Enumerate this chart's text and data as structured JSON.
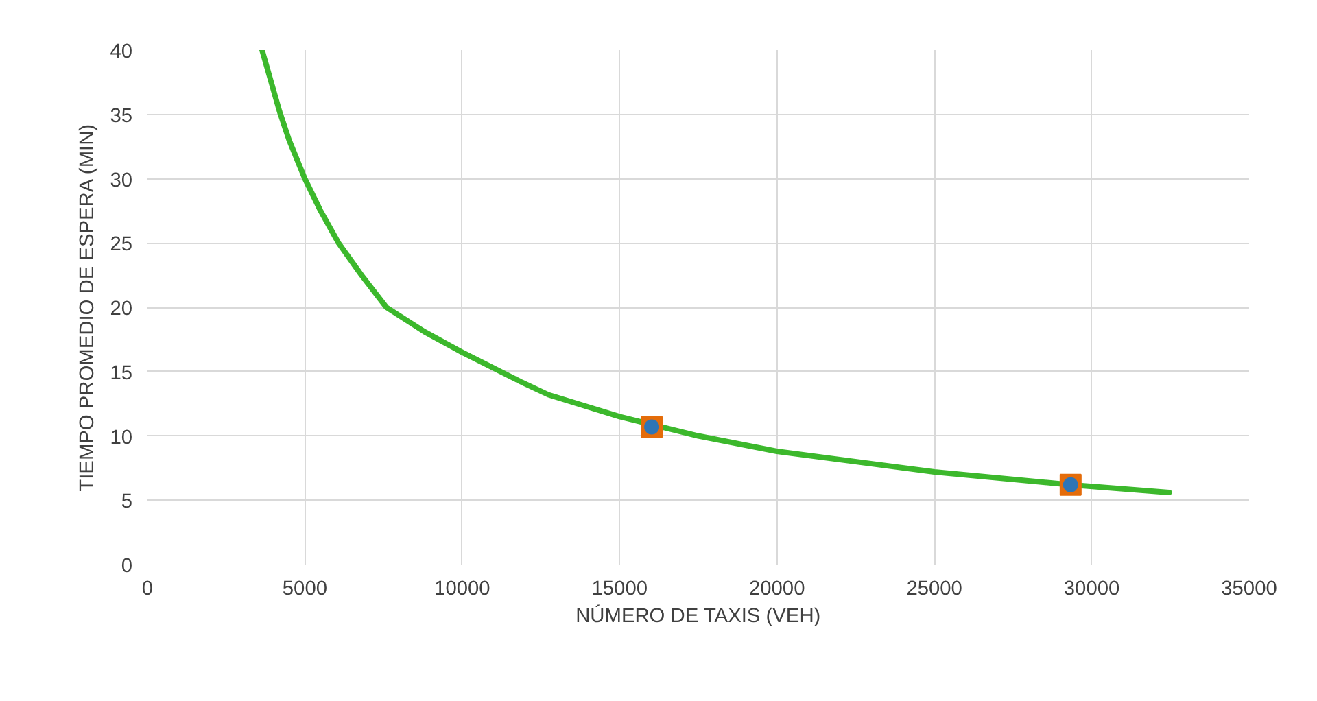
{
  "chart_data": {
    "type": "line",
    "xlabel": "NÚMERO DE TAXIS (VEH)",
    "ylabel": "TIEMPO PROMEDIO DE ESPERA (MIN)",
    "xlim": [
      0,
      35000
    ],
    "ylim": [
      0,
      40
    ],
    "xticks": [
      0,
      5000,
      10000,
      15000,
      20000,
      25000,
      30000,
      35000
    ],
    "yticks": [
      0,
      5,
      10,
      15,
      20,
      25,
      30,
      35,
      40
    ],
    "grid": true,
    "series": [
      {
        "color": "#3cb82c",
        "marker": "none",
        "x": [
          3640,
          4200,
          4500,
          5000,
          5500,
          6070,
          6800,
          7590,
          8800,
          10000,
          11870,
          12740,
          15000,
          17500,
          20000,
          25000,
          29330,
          32460
        ],
        "values": [
          40,
          35.2,
          33,
          30,
          27.5,
          25,
          22.5,
          20,
          18.1,
          16.5,
          14.2,
          13.2,
          11.5,
          10,
          8.8,
          7.2,
          6.2,
          5.6
        ]
      },
      {
        "type": "scatter",
        "color": "#e46c0a",
        "marker": "square",
        "x": [
          16020,
          29330
        ],
        "values": [
          10.7,
          6.2
        ]
      },
      {
        "type": "scatter",
        "color": "#2e75b6",
        "marker": "circle",
        "x": [
          16020,
          29330
        ],
        "values": [
          10.7,
          6.2
        ]
      }
    ]
  }
}
